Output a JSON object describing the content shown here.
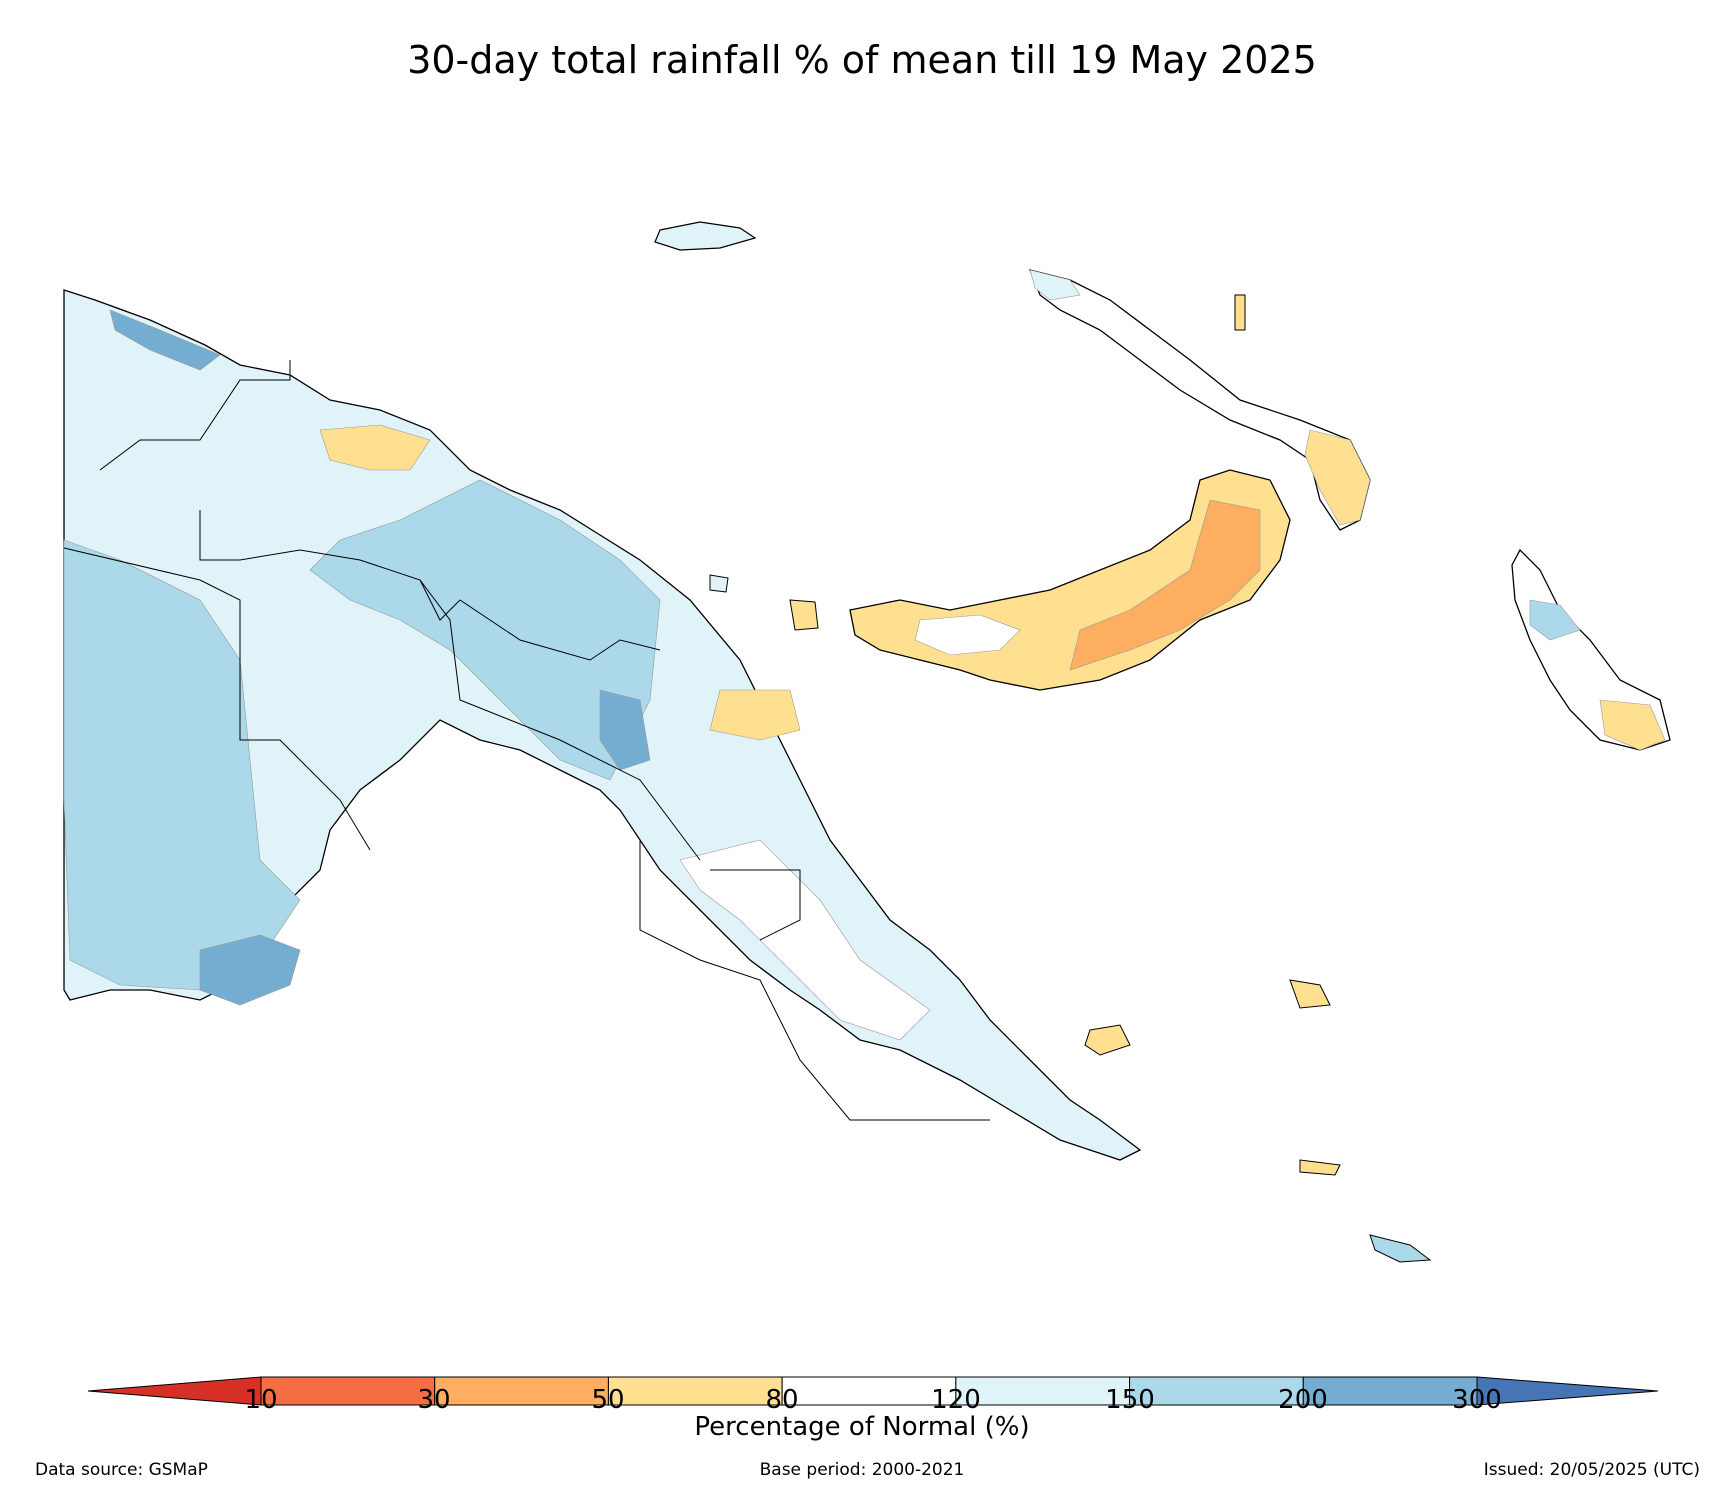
{
  "title": "30-day total rainfall % of mean till 19 May 2025",
  "colorbar": {
    "label": "Percentage of Normal (%)",
    "ticks": [
      "10",
      "30",
      "50",
      "80",
      "120",
      "150",
      "200",
      "300"
    ],
    "colors": [
      "#d73027",
      "#f46d43",
      "#fdae61",
      "#fee090",
      "#ffffff",
      "#e0f3f8",
      "#abd9e9",
      "#74add1",
      "#4575b4"
    ]
  },
  "legend_colors": {
    "land_outline": "#000000",
    "very_dry": "#f46d43",
    "dry": "#fdae61",
    "slightly_dry": "#fee090",
    "near_normal": "#ffffff",
    "slightly_wet": "#e0f3f8",
    "wet": "#abd9e9",
    "very_wet": "#74add1"
  },
  "footer": {
    "source": "Data source: GSMaP",
    "base": "Base period: 2000-2021",
    "issued": "Issued: 20/05/2025 (UTC)"
  }
}
